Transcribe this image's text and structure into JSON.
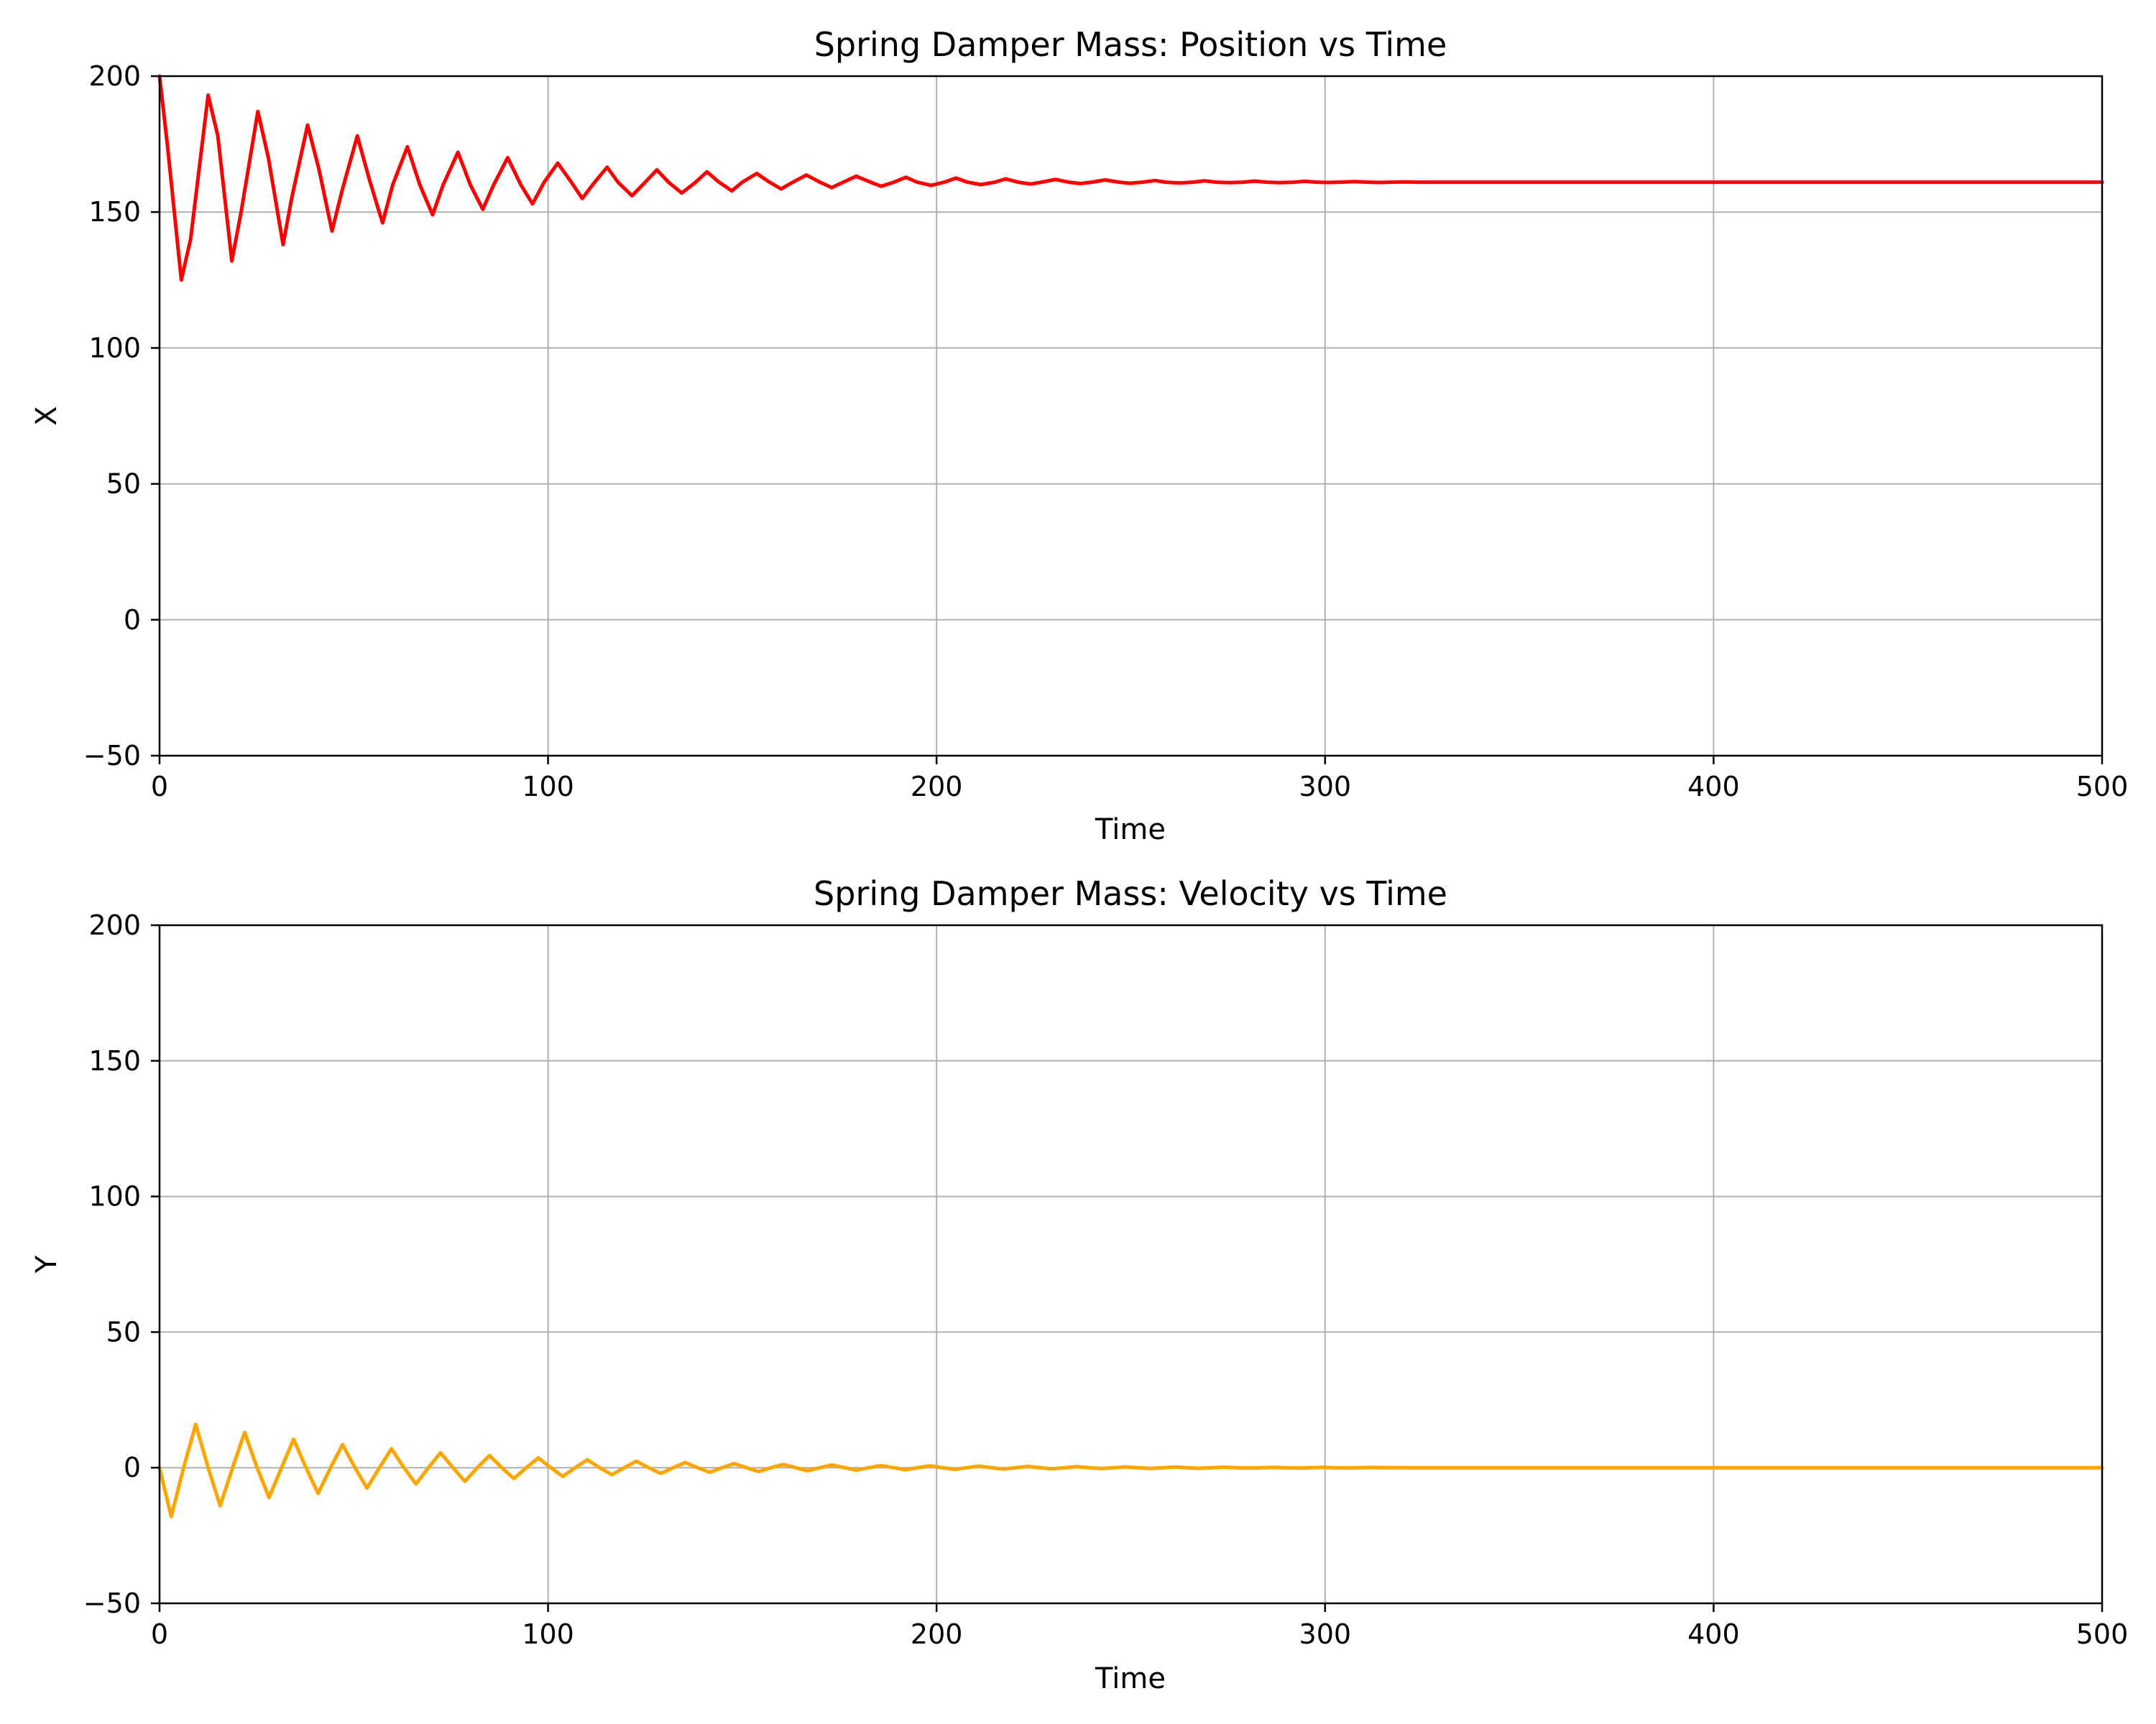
{
  "chart_data": [
    {
      "type": "line",
      "title": "Spring Damper Mass: Position vs Time",
      "xlabel": "Time",
      "ylabel": "X",
      "xlim": [
        0,
        500
      ],
      "ylim": [
        -50,
        200
      ],
      "xticks": [
        "0",
        "100",
        "200",
        "300",
        "400",
        "500"
      ],
      "yticks": [
        "−50",
        "0",
        "50",
        "100",
        "150",
        "200"
      ],
      "grid": true,
      "series": [
        {
          "color": "#ff0000",
          "x": [
            0,
            2,
            5.6,
            8,
            12.5,
            15,
            18.6,
            21,
            25.3,
            28,
            31.8,
            34,
            38.1,
            41,
            44.4,
            47,
            50.9,
            54,
            57.4,
            60,
            63.8,
            67,
            70.3,
            73,
            76.8,
            80,
            83.2,
            86,
            89.6,
            93,
            96.0,
            99,
            102.5,
            106,
            108.8,
            112,
            115.2,
            118,
            121.6,
            125,
            128.0,
            131,
            134.4,
            138,
            140.9,
            144,
            147.3,
            150,
            153.7,
            157,
            160.0,
            163,
            166.5,
            170,
            173.0,
            176,
            179.3,
            183,
            185.8,
            189,
            192.1,
            195,
            198.6,
            202,
            205.0,
            208,
            211.4,
            215,
            217.8,
            221,
            224.2,
            227,
            230.6,
            234,
            237.0,
            240,
            243.4,
            247,
            249.8,
            253,
            256.2,
            259,
            262.6,
            266,
            269.0,
            272,
            275.4,
            279,
            281.8,
            285,
            288.2,
            292,
            294.6,
            298,
            301.0,
            304,
            307.4,
            311,
            313.8,
            317,
            320.2,
            324,
            330,
            340,
            360,
            380,
            400,
            420,
            440,
            460,
            480,
            500
          ],
          "y": [
            200,
            175,
            125,
            140,
            193,
            178,
            132,
            150,
            187,
            170,
            138,
            155,
            182,
            166,
            143,
            158,
            178,
            162,
            146,
            160,
            174,
            160,
            149,
            160,
            172,
            160,
            151,
            160,
            170,
            160,
            153,
            161,
            168,
            161,
            155,
            161,
            166.5,
            161,
            156,
            161,
            165.5,
            161,
            157,
            161,
            164.8,
            161,
            157.8,
            161,
            164.2,
            161,
            158.5,
            161,
            163.6,
            161,
            159,
            161,
            163.2,
            161,
            159.5,
            161,
            162.8,
            161,
            159.8,
            161,
            162.5,
            161,
            160.1,
            161,
            162.2,
            161,
            160.3,
            161,
            162.0,
            161,
            160.5,
            161,
            161.8,
            161,
            160.6,
            161,
            161.6,
            161,
            160.7,
            161,
            161.5,
            161,
            160.8,
            161,
            161.4,
            161,
            160.8,
            161,
            161.3,
            161,
            160.9,
            161,
            161.2,
            161,
            160.9,
            161,
            161.1,
            161,
            161,
            161,
            161,
            161,
            161,
            161,
            161,
            161,
            161,
            161
          ]
        }
      ]
    },
    {
      "type": "line",
      "title": "Spring Damper Mass: Velocity vs Time",
      "xlabel": "Time",
      "ylabel": "Y",
      "xlim": [
        0,
        500
      ],
      "ylim": [
        -50,
        200
      ],
      "xticks": [
        "0",
        "100",
        "200",
        "300",
        "400",
        "500"
      ],
      "yticks": [
        "−50",
        "0",
        "50",
        "100",
        "150",
        "200"
      ],
      "grid": true,
      "series": [
        {
          "color": "#ffa500",
          "x": [
            0,
            3.0,
            6.2,
            9.3,
            12.5,
            15.6,
            18.8,
            21.9,
            25.1,
            28.2,
            31.4,
            34.5,
            37.7,
            40.8,
            44.0,
            47.1,
            50.3,
            53.4,
            56.6,
            59.7,
            62.9,
            66.0,
            69.2,
            72.3,
            75.5,
            78.6,
            81.8,
            84.9,
            88.1,
            91.2,
            94.4,
            97.5,
            100.7,
            103.8,
            107.0,
            110.1,
            113.3,
            116.4,
            119.6,
            122.7,
            125.9,
            129.0,
            132.2,
            135.3,
            138.5,
            141.6,
            144.8,
            147.9,
            151.1,
            154.2,
            157.4,
            160.5,
            163.7,
            166.8,
            170.0,
            173.1,
            176.3,
            179.4,
            182.6,
            185.7,
            188.9,
            192.0,
            195.2,
            198.3,
            201.5,
            204.6,
            207.8,
            210.9,
            214.1,
            217.2,
            220.4,
            223.5,
            226.7,
            229.8,
            233.0,
            236.1,
            239.3,
            242.4,
            245.6,
            248.7,
            251.9,
            255.0,
            258.2,
            261.3,
            264.5,
            267.6,
            270.8,
            273.9,
            277.1,
            280.2,
            283.4,
            286.5,
            289.7,
            292.8,
            296.0,
            299.1,
            302.3,
            305.4,
            308.6,
            311.7,
            320,
            340,
            360,
            380,
            400,
            420,
            440,
            460,
            480,
            500
          ],
          "y": [
            0,
            -18,
            0,
            16,
            0,
            -14,
            0,
            13,
            0,
            -11,
            0,
            10.5,
            0,
            -9.5,
            0,
            8.5,
            0,
            -7.5,
            0,
            7,
            0,
            -6,
            0,
            5.5,
            0,
            -5,
            0,
            4.5,
            0,
            -4,
            0,
            3.6,
            0,
            -3.2,
            0,
            2.9,
            0,
            -2.6,
            0,
            2.4,
            0,
            -2.1,
            0,
            1.9,
            0,
            -1.7,
            0,
            1.5,
            0,
            -1.4,
            0,
            1.2,
            0,
            -1.1,
            0,
            1,
            0,
            -0.9,
            0,
            0.8,
            0,
            -0.75,
            0,
            0.7,
            0,
            -0.6,
            0,
            0.55,
            0,
            -0.5,
            0,
            0.45,
            0,
            -0.4,
            0,
            0.36,
            0,
            -0.32,
            0,
            0.29,
            0,
            -0.26,
            0,
            0.23,
            0,
            -0.2,
            0,
            0.18,
            0,
            -0.16,
            0,
            0.14,
            0,
            -0.12,
            0,
            0.1,
            0,
            -0.09,
            0,
            0.08,
            0,
            0,
            0,
            0,
            0,
            0,
            0,
            0,
            0,
            0
          ]
        }
      ]
    }
  ]
}
